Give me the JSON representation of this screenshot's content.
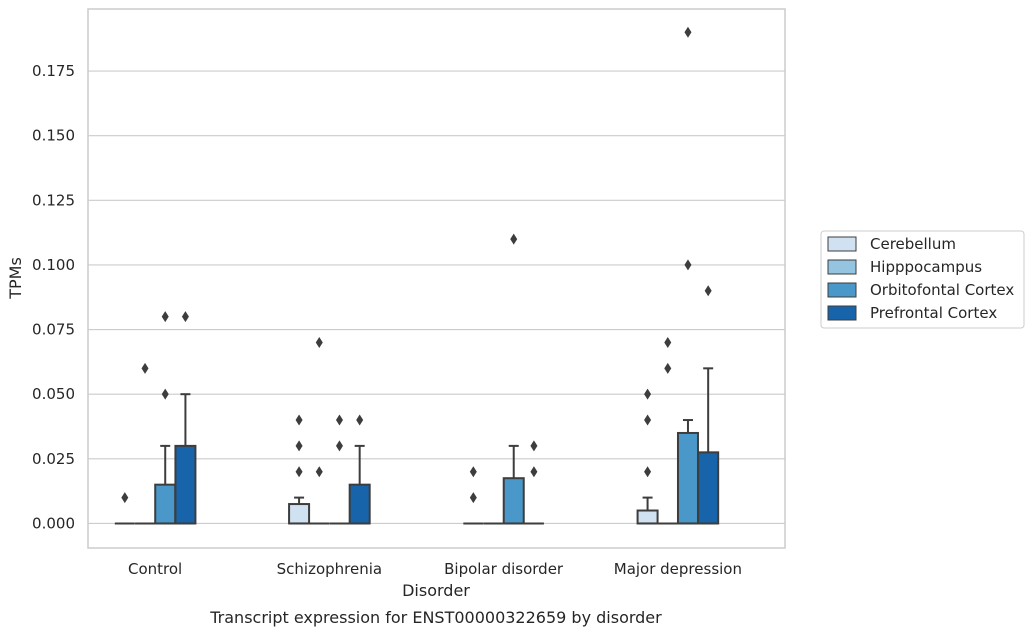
{
  "chart_data": {
    "type": "box",
    "title": "",
    "caption": "Transcript expression for ENST00000322659 by disorder",
    "xlabel": "Disorder",
    "ylabel": "TPMs",
    "ylim": [
      -0.0095,
      0.199
    ],
    "yticks": [
      "0.000",
      "0.025",
      "0.050",
      "0.075",
      "0.100",
      "0.125",
      "0.150",
      "0.175"
    ],
    "grid": "horizontal",
    "legend_position": "right",
    "categories": [
      "Control",
      "Schizophrenia",
      "Bipolar disorder",
      "Major depression"
    ],
    "series": [
      {
        "name": "Cerebellum",
        "color": "#d0e1f2",
        "boxes": [
          {
            "q1": 0,
            "median": 0,
            "q3": 0,
            "whisker_low": 0,
            "whisker_high": 0,
            "outliers": [
              0.01
            ]
          },
          {
            "q1": 0,
            "median": 0,
            "q3": 0.0075,
            "whisker_low": 0,
            "whisker_high": 0.01,
            "outliers": [
              0.02,
              0.03,
              0.04
            ]
          },
          {
            "q1": 0,
            "median": 0,
            "q3": 0,
            "whisker_low": 0,
            "whisker_high": 0,
            "outliers": [
              0.01,
              0.02
            ]
          },
          {
            "q1": 0,
            "median": 0,
            "q3": 0.005,
            "whisker_low": 0,
            "whisker_high": 0.01,
            "outliers": [
              0.02,
              0.04,
              0.05
            ]
          }
        ]
      },
      {
        "name": "Hipppocampus",
        "color": "#94c4df",
        "boxes": [
          {
            "q1": 0,
            "median": 0,
            "q3": 0,
            "whisker_low": 0,
            "whisker_high": 0,
            "outliers": [
              0.06
            ]
          },
          {
            "q1": 0,
            "median": 0,
            "q3": 0,
            "whisker_low": 0,
            "whisker_high": 0,
            "outliers": [
              0.02,
              0.07
            ]
          },
          {
            "q1": 0,
            "median": 0,
            "q3": 0,
            "whisker_low": 0,
            "whisker_high": 0,
            "outliers": []
          },
          {
            "q1": 0,
            "median": 0,
            "q3": 0,
            "whisker_low": 0,
            "whisker_high": 0,
            "outliers": [
              0.06,
              0.07
            ]
          }
        ]
      },
      {
        "name": "Orbitofontal Cortex",
        "color": "#4a98c9",
        "boxes": [
          {
            "q1": 0,
            "median": 0,
            "q3": 0.015,
            "whisker_low": 0,
            "whisker_high": 0.03,
            "outliers": [
              0.05,
              0.08
            ]
          },
          {
            "q1": 0,
            "median": 0,
            "q3": 0,
            "whisker_low": 0,
            "whisker_high": 0,
            "outliers": [
              0.03,
              0.04
            ]
          },
          {
            "q1": 0,
            "median": 0,
            "q3": 0.0175,
            "whisker_low": 0,
            "whisker_high": 0.03,
            "outliers": [
              0.11
            ]
          },
          {
            "q1": 0,
            "median": 0,
            "q3": 0.035,
            "whisker_low": 0,
            "whisker_high": 0.04,
            "outliers": [
              0.1,
              0.19
            ]
          }
        ]
      },
      {
        "name": "Prefrontal Cortex",
        "color": "#1764ab",
        "boxes": [
          {
            "q1": 0,
            "median": 0,
            "q3": 0.03,
            "whisker_low": 0,
            "whisker_high": 0.05,
            "outliers": [
              0.08
            ]
          },
          {
            "q1": 0,
            "median": 0,
            "q3": 0.015,
            "whisker_low": 0,
            "whisker_high": 0.03,
            "outliers": [
              0.04
            ]
          },
          {
            "q1": 0,
            "median": 0,
            "q3": 0,
            "whisker_low": 0,
            "whisker_high": 0,
            "outliers": [
              0.02,
              0.03
            ]
          },
          {
            "q1": 0,
            "median": 0,
            "q3": 0.0275,
            "whisker_low": 0,
            "whisker_high": 0.06,
            "outliers": [
              0.09
            ]
          }
        ]
      }
    ]
  }
}
